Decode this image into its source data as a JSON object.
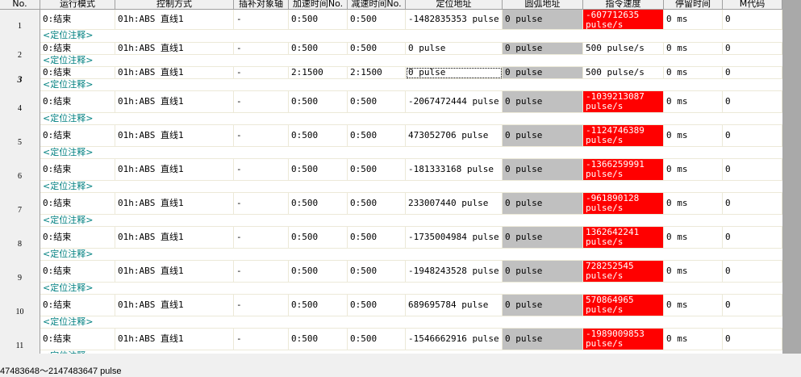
{
  "columns": [
    "No.",
    "运行模式",
    "控制方式",
    "插补对象轴",
    "加速时间No.",
    "减速时间No.",
    "定位地址",
    "圆弧地址",
    "指令速度",
    "停留时间",
    "M代码"
  ],
  "comment_label": "<定位注释>",
  "rows": [
    {
      "no": "1",
      "mode": "0:结束",
      "ctrl": "01h:ABS 直线1",
      "axis": "-",
      "acc": "0:500",
      "dec": "0:500",
      "addr": "-1482835353 pulse",
      "arc": "0 pulse",
      "speed": "-607712635 pulse/s",
      "speed_invalid": true,
      "dwell": "0 ms",
      "m": "0"
    },
    {
      "no": "2",
      "mode": "0:结束",
      "ctrl": "01h:ABS 直线1",
      "axis": "-",
      "acc": "0:500",
      "dec": "0:500",
      "addr": "0 pulse",
      "arc": "0 pulse",
      "speed": "500 pulse/s",
      "speed_invalid": false,
      "dwell": "0 ms",
      "m": "0"
    },
    {
      "no": "3",
      "current": true,
      "mode": "0:结束",
      "ctrl": "01h:ABS 直线1",
      "axis": "-",
      "acc": "2:1500",
      "dec": "2:1500",
      "addr": "0 pulse",
      "arc": "0 pulse",
      "speed": "500 pulse/s",
      "speed_invalid": false,
      "dwell": "0 ms",
      "m": "0"
    },
    {
      "no": "4",
      "mode": "0:结束",
      "ctrl": "01h:ABS 直线1",
      "axis": "-",
      "acc": "0:500",
      "dec": "0:500",
      "addr": "-2067472444 pulse",
      "arc": "0 pulse",
      "speed": "-1039213087 pulse/s",
      "speed_invalid": true,
      "dwell": "0 ms",
      "m": "0"
    },
    {
      "no": "5",
      "mode": "0:结束",
      "ctrl": "01h:ABS 直线1",
      "axis": "-",
      "acc": "0:500",
      "dec": "0:500",
      "addr": "473052706 pulse",
      "arc": "0 pulse",
      "speed": "-1124746389 pulse/s",
      "speed_invalid": true,
      "dwell": "0 ms",
      "m": "0"
    },
    {
      "no": "6",
      "mode": "0:结束",
      "ctrl": "01h:ABS 直线1",
      "axis": "-",
      "acc": "0:500",
      "dec": "0:500",
      "addr": "-181333168 pulse",
      "arc": "0 pulse",
      "speed": "-1366259991 pulse/s",
      "speed_invalid": true,
      "dwell": "0 ms",
      "m": "0"
    },
    {
      "no": "7",
      "mode": "0:结束",
      "ctrl": "01h:ABS 直线1",
      "axis": "-",
      "acc": "0:500",
      "dec": "0:500",
      "addr": "233007440 pulse",
      "arc": "0 pulse",
      "speed": "-961890128 pulse/s",
      "speed_invalid": true,
      "dwell": "0 ms",
      "m": "0"
    },
    {
      "no": "8",
      "mode": "0:结束",
      "ctrl": "01h:ABS 直线1",
      "axis": "-",
      "acc": "0:500",
      "dec": "0:500",
      "addr": "-1735004984 pulse",
      "arc": "0 pulse",
      "speed": "1362642241 pulse/s",
      "speed_invalid": true,
      "dwell": "0 ms",
      "m": "0"
    },
    {
      "no": "9",
      "mode": "0:结束",
      "ctrl": "01h:ABS 直线1",
      "axis": "-",
      "acc": "0:500",
      "dec": "0:500",
      "addr": "-1948243528 pulse",
      "arc": "0 pulse",
      "speed": "728252545 pulse/s",
      "speed_invalid": true,
      "dwell": "0 ms",
      "m": "0"
    },
    {
      "no": "10",
      "mode": "0:结束",
      "ctrl": "01h:ABS 直线1",
      "axis": "-",
      "acc": "0:500",
      "dec": "0:500",
      "addr": "689695784 pulse",
      "arc": "0 pulse",
      "speed": "570864965 pulse/s",
      "speed_invalid": true,
      "dwell": "0 ms",
      "m": "0"
    },
    {
      "no": "11",
      "mode": "0:结束",
      "ctrl": "01h:ABS 直线1",
      "axis": "-",
      "acc": "0:500",
      "dec": "0:500",
      "addr": "-1546662916 pulse",
      "arc": "0 pulse",
      "speed": "-1989009853 pulse/s",
      "speed_invalid": true,
      "dwell": "0 ms",
      "m": "0"
    }
  ],
  "status_text": "47483648～2147483647 pulse",
  "colors": {
    "invalid": "#ff0000",
    "arc_disabled": "#c0c0c0",
    "comment": "#008080"
  }
}
